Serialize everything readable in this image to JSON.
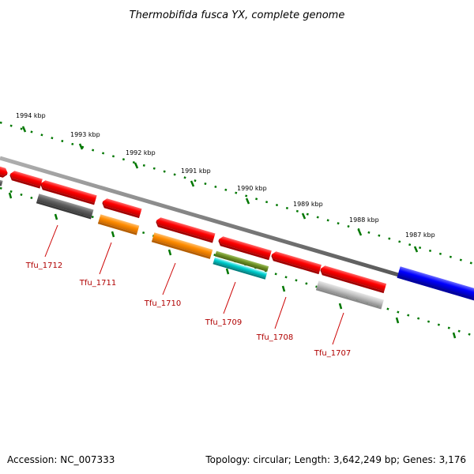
{
  "title": "Thermobifida fusca YX, complete genome",
  "accession": "Accession: NC_007333",
  "summary": "Topology: circular; Length: 3,642,249 bp; Genes: 3,176",
  "ruler": [
    "1994 kbp",
    "1993 kbp",
    "1992 kbp",
    "1991 kbp",
    "1990 kbp",
    "1989 kbp",
    "1988 kbp",
    "1987 kbp"
  ],
  "genes": [
    {
      "label": "Tfu_1712",
      "color": "#606060"
    },
    {
      "label": "Tfu_1711",
      "color": "#ff8c00"
    },
    {
      "label": "Tfu_1710",
      "color": "#ff8c00"
    },
    {
      "label": "Tfu_1709",
      "color": "#00c0c0"
    },
    {
      "label": "Tfu_1708",
      "color": "#ff0000"
    },
    {
      "label": "Tfu_1707",
      "color": "#b8b8b8"
    }
  ],
  "colors": {
    "forward_cds": "#ff0000",
    "backbone": "#808080",
    "ruler_ticks": "#007700",
    "label_text": "#b00000",
    "rna": "#0000ff",
    "olive": "#6b8e23"
  }
}
